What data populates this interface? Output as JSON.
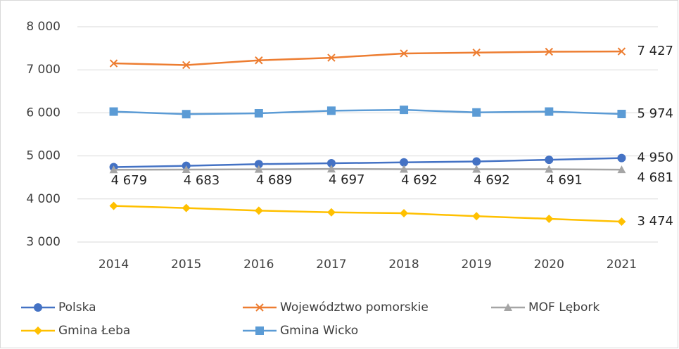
{
  "chart_data": {
    "type": "line",
    "categories": [
      "2014",
      "2015",
      "2016",
      "2017",
      "2018",
      "2019",
      "2020",
      "2021"
    ],
    "series": [
      {
        "name": "Polska",
        "color": "#4472c4",
        "marker": "circle",
        "values": [
          4740,
          4770,
          4810,
          4830,
          4850,
          4870,
          4910,
          4950
        ],
        "value_labels": [
          null,
          null,
          null,
          null,
          null,
          null,
          null,
          "4 950"
        ]
      },
      {
        "name": "Województwo pomorskie",
        "color": "#ed7d31",
        "marker": "x",
        "values": [
          7150,
          7110,
          7220,
          7280,
          7380,
          7400,
          7420,
          7427
        ],
        "value_labels": [
          null,
          null,
          null,
          null,
          null,
          null,
          null,
          "7 427"
        ]
      },
      {
        "name": "MOF Lębork",
        "color": "#a5a5a5",
        "marker": "triangle",
        "values": [
          4679,
          4683,
          4689,
          4697,
          4692,
          4692,
          4691,
          4681
        ],
        "value_labels": [
          "4 679",
          "4 683",
          "4 689",
          "4 697",
          "4 692",
          "4 692",
          "4 691",
          "4 681"
        ]
      },
      {
        "name": "Gmina Łeba",
        "color": "#ffc000",
        "marker": "diamond",
        "values": [
          3840,
          3790,
          3730,
          3690,
          3670,
          3600,
          3540,
          3474
        ],
        "value_labels": [
          null,
          null,
          null,
          null,
          null,
          null,
          null,
          "3 474"
        ]
      },
      {
        "name": "Gmina Wicko",
        "color": "#5b9bd5",
        "marker": "square",
        "values": [
          6030,
          5970,
          5990,
          6050,
          6070,
          6010,
          6030,
          5974
        ],
        "value_labels": [
          null,
          null,
          null,
          null,
          null,
          null,
          null,
          "5 974"
        ]
      }
    ],
    "ylim": [
      3000,
      8000
    ],
    "yticks": [
      {
        "value": 3000,
        "label": "3 000"
      },
      {
        "value": 4000,
        "label": "4 000"
      },
      {
        "value": 5000,
        "label": "5 000"
      },
      {
        "value": 6000,
        "label": "6 000"
      },
      {
        "value": 7000,
        "label": "7 000"
      },
      {
        "value": 8000,
        "label": "8 000"
      }
    ],
    "grid": true,
    "legend": "bottom"
  }
}
